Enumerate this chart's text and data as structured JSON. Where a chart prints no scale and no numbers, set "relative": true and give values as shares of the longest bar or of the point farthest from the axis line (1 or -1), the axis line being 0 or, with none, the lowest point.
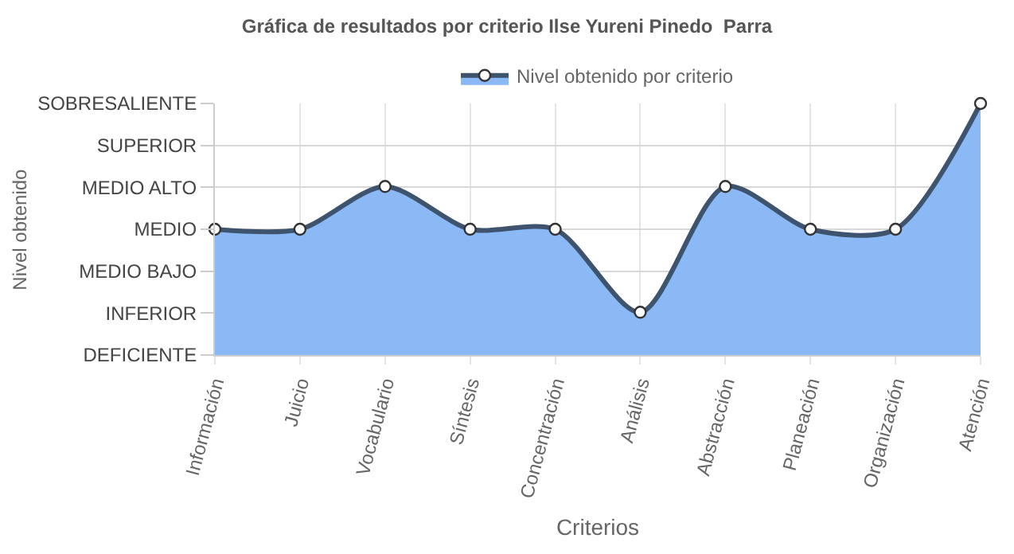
{
  "chart_data": {
    "type": "area",
    "title": "Gráfica de resultados por criterio Ilse Yureni Pinedo  Parra",
    "xlabel": "Criterios",
    "categories": [
      "Información",
      "Juicio",
      "Vocabulario",
      "Síntesis",
      "Concentración",
      "Análisis",
      "Abstracción",
      "Planeación",
      "Organización",
      "Atención"
    ],
    "series": [
      {
        "name": "Nivel obtenido por criterio",
        "color": "#8ab9f5",
        "values": [
          0.5,
          0.5,
          0.67,
          0.5,
          0.5,
          0.17,
          0.67,
          0.5,
          0.5,
          1
        ]
      }
    ],
    "relative": true,
    "annotations": [
      "Nivel obtenido",
      "SOBRESALIENTE",
      "SUPERIOR",
      "MEDIO ALTO",
      "MEDIO",
      "MEDIO BAJO",
      "INFERIOR",
      "DEFICIENTE"
    ],
    "grid": true,
    "legend": "top",
    "marker": "circle",
    "line_style": "solid"
  }
}
